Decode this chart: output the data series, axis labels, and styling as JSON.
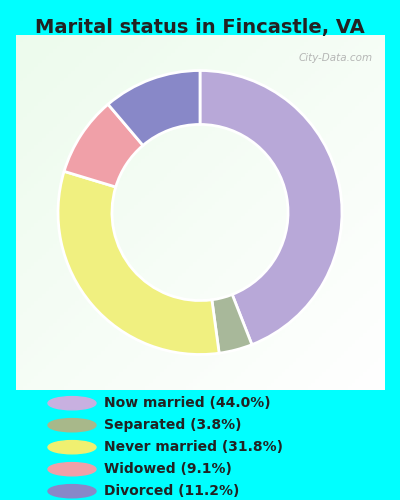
{
  "title": "Marital status in Fincastle, VA",
  "title_fontsize": 14,
  "title_color": "#222222",
  "background_color": "#00ffff",
  "chart_bg_color": "#d8eed8",
  "slices": [
    {
      "label": "Now married (44.0%)",
      "value": 44.0,
      "color": "#b8a8d8"
    },
    {
      "label": "Separated (3.8%)",
      "value": 3.8,
      "color": "#a8b89a"
    },
    {
      "label": "Never married (31.8%)",
      "value": 31.8,
      "color": "#f0f080"
    },
    {
      "label": "Widowed (9.1%)",
      "value": 9.1,
      "color": "#f0a0a8"
    },
    {
      "label": "Divorced (11.2%)",
      "value": 11.2,
      "color": "#8888c8"
    }
  ],
  "legend_colors": [
    "#c8b0e0",
    "#a8b88a",
    "#f0f070",
    "#f0a0a8",
    "#8888c8"
  ],
  "legend_labels": [
    "Now married (44.0%)",
    "Separated (3.8%)",
    "Never married (31.8%)",
    "Widowed (9.1%)",
    "Divorced (11.2%)"
  ],
  "donut_width": 0.38,
  "watermark": "City-Data.com",
  "start_angle": 90
}
